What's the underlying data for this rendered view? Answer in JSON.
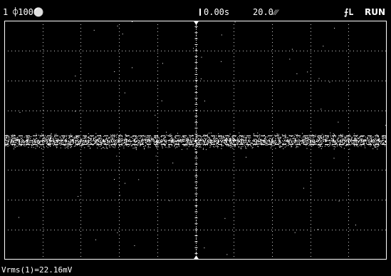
{
  "topbar": {
    "channel": "1",
    "channel_scale": "⌽100⚪",
    "time_offset": "0.00s",
    "time_scale": "20.0⁄⁄⁄",
    "trigger_icon": "⨍L",
    "run_status": "RUN"
  },
  "measurement": {
    "text": "Vrms(1)=22.16mV"
  },
  "display": {
    "grid_divisions_x": 10,
    "grid_divisions_y": 8,
    "trace_color": "#ffffff",
    "grid_color": "#ffffff"
  },
  "icons": {
    "trigger": "trigger-edge-icon",
    "time_ref": "time-reference-marker-icon"
  }
}
